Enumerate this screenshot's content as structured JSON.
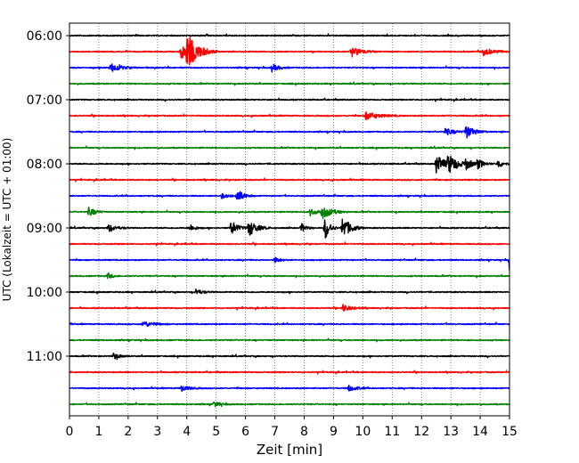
{
  "chart_data": {
    "type": "line",
    "title": "",
    "xlabel": "Zeit  [min]",
    "ylabel": "UTC (Lokalzeit = UTC + 01:00)",
    "xlim": [
      0,
      15
    ],
    "xticks": [
      0,
      1,
      2,
      3,
      4,
      5,
      6,
      7,
      8,
      9,
      10,
      11,
      12,
      13,
      14,
      15
    ],
    "xtick_labels": [
      "0",
      "1",
      "2",
      "3",
      "4",
      "5",
      "6",
      "7",
      "8",
      "9",
      "10",
      "11",
      "12",
      "13",
      "14",
      "15"
    ],
    "ytick_labels": [
      "06:00",
      "07:00",
      "08:00",
      "09:00",
      "10:00",
      "11:00"
    ],
    "grid_x": "dotted",
    "trace_colors": [
      "#000000",
      "#ff0000",
      "#0000ff",
      "#008000"
    ],
    "trace_start": "06:00",
    "trace_interval_min": 15,
    "trace_count": 24,
    "events": [
      {
        "trace": 1,
        "t": 4.0,
        "amp": 1.0,
        "dur": 0.35
      },
      {
        "trace": 1,
        "t": 3.8,
        "amp": 0.5,
        "dur": 0.3
      },
      {
        "trace": 1,
        "t": 9.6,
        "amp": 0.35,
        "dur": 0.3
      },
      {
        "trace": 1,
        "t": 14.1,
        "amp": 0.25,
        "dur": 0.3
      },
      {
        "trace": 2,
        "t": 1.4,
        "amp": 0.3,
        "dur": 0.3
      },
      {
        "trace": 2,
        "t": 6.9,
        "amp": 0.25,
        "dur": 0.2
      },
      {
        "trace": 5,
        "t": 10.1,
        "amp": 0.25,
        "dur": 0.4
      },
      {
        "trace": 6,
        "t": 13.5,
        "amp": 0.45,
        "dur": 0.25
      },
      {
        "trace": 6,
        "t": 12.8,
        "amp": 0.25,
        "dur": 0.25
      },
      {
        "trace": 8,
        "t": 12.5,
        "amp": 0.65,
        "dur": 0.25
      },
      {
        "trace": 8,
        "t": 12.9,
        "amp": 0.6,
        "dur": 0.3
      },
      {
        "trace": 8,
        "t": 13.5,
        "amp": 0.35,
        "dur": 0.2
      },
      {
        "trace": 8,
        "t": 13.9,
        "amp": 0.3,
        "dur": 0.2
      },
      {
        "trace": 8,
        "t": 14.6,
        "amp": 0.3,
        "dur": 0.15
      },
      {
        "trace": 10,
        "t": 5.7,
        "amp": 0.45,
        "dur": 0.2
      },
      {
        "trace": 10,
        "t": 5.2,
        "amp": 0.2,
        "dur": 0.15
      },
      {
        "trace": 11,
        "t": 0.65,
        "amp": 0.3,
        "dur": 0.2
      },
      {
        "trace": 11,
        "t": 8.6,
        "amp": 0.45,
        "dur": 0.3
      },
      {
        "trace": 11,
        "t": 8.2,
        "amp": 0.25,
        "dur": 0.2
      },
      {
        "trace": 12,
        "t": 5.5,
        "amp": 0.5,
        "dur": 0.2
      },
      {
        "trace": 12,
        "t": 6.1,
        "amp": 0.55,
        "dur": 0.25
      },
      {
        "trace": 12,
        "t": 8.7,
        "amp": 0.8,
        "dur": 0.15
      },
      {
        "trace": 12,
        "t": 9.3,
        "amp": 0.75,
        "dur": 0.25
      },
      {
        "trace": 12,
        "t": 7.9,
        "amp": 0.3,
        "dur": 0.15
      },
      {
        "trace": 12,
        "t": 4.1,
        "amp": 0.25,
        "dur": 0.15
      },
      {
        "trace": 12,
        "t": 1.3,
        "amp": 0.25,
        "dur": 0.25
      },
      {
        "trace": 14,
        "t": 15.0,
        "amp": 0.75,
        "dur": 0.12
      },
      {
        "trace": 14,
        "t": 7.0,
        "amp": 0.2,
        "dur": 0.15
      },
      {
        "trace": 15,
        "t": 1.3,
        "amp": 0.2,
        "dur": 0.15
      },
      {
        "trace": 16,
        "t": 4.3,
        "amp": 0.2,
        "dur": 0.2
      },
      {
        "trace": 17,
        "t": 9.3,
        "amp": 0.25,
        "dur": 0.25
      },
      {
        "trace": 18,
        "t": 2.5,
        "amp": 0.2,
        "dur": 0.3
      },
      {
        "trace": 20,
        "t": 1.5,
        "amp": 0.2,
        "dur": 0.2
      },
      {
        "trace": 22,
        "t": 3.8,
        "amp": 0.2,
        "dur": 0.25
      },
      {
        "trace": 22,
        "t": 9.5,
        "amp": 0.2,
        "dur": 0.25
      },
      {
        "trace": 23,
        "t": 4.9,
        "amp": 0.18,
        "dur": 0.2
      }
    ]
  }
}
